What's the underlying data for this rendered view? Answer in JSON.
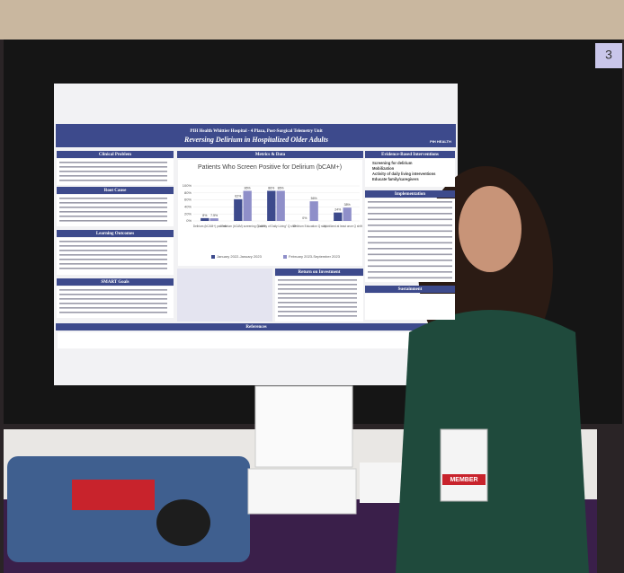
{
  "board_number": "3",
  "poster": {
    "title": "PIH Health Whittier Hospital - 4 Plaza, Post-Surgical Telemetry Unit",
    "subtitle": "Reversing Delirium in Hospitalized Older Adults",
    "logo": "PIH HEALTH",
    "left_sections": [
      "Clinical Problem",
      "Root Cause",
      "Learning Outcomes",
      "SMART Goals"
    ],
    "middle_sections": [
      "Metrics & Data",
      "Return on Investment"
    ],
    "right_sections": [
      "Evidence-Based Interventions",
      "Implementation",
      "Sustainment"
    ],
    "references": "References",
    "interventions": [
      "Screening for delirium",
      "Mobilization",
      "Activity of daily living interventions",
      "Educate family/caregivers"
    ],
    "chart": {
      "type": "bar",
      "title": "Patients Who Screen Positive for Delirium (bCAM+)",
      "categories": [
        "Delirium (bCAM+) patients",
        "Delirium (bCAM) screening Q shift",
        "\"Activity of Daily Living\" Q shift",
        "Delirium Education Q stay",
        "Mobilized at least once Q shift"
      ],
      "series": [
        {
          "name": "January 2022-January 2023",
          "color": "#3d4a8c",
          "values": [
            8,
            62,
            86,
            0,
            24
          ],
          "value_labels": [
            "8%",
            "62%",
            "86%",
            "0%",
            "24%"
          ]
        },
        {
          "name": "February 2023-September 2023",
          "color": "#8f8fc9",
          "values": [
            7.5,
            86,
            86,
            56,
            38
          ],
          "value_labels": [
            "7.5%",
            "86%",
            "86%",
            "56%",
            "38%"
          ]
        }
      ],
      "ylim": [
        0,
        100
      ],
      "yticks": [
        {
          "value": 0,
          "label": "0%"
        },
        {
          "value": 20,
          "label": "20%"
        },
        {
          "value": 40,
          "label": "40%"
        },
        {
          "value": 60,
          "label": "60%"
        },
        {
          "value": 80,
          "label": "80%"
        },
        {
          "value": 100,
          "label": "100%"
        }
      ]
    }
  },
  "badge": "MEMBER"
}
